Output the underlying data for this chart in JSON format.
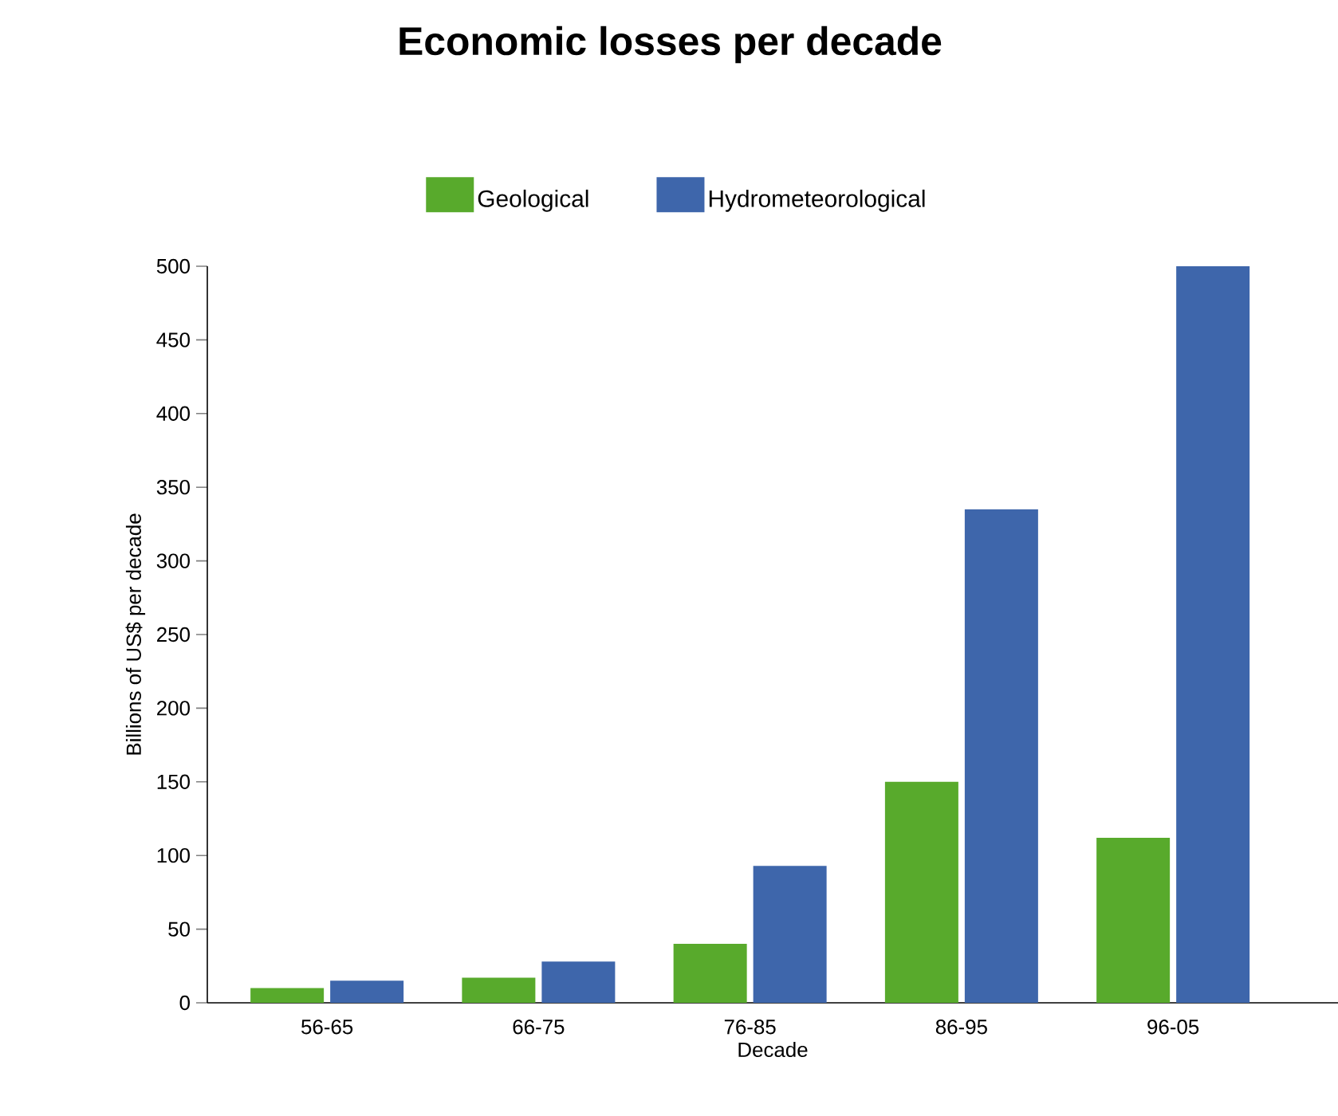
{
  "chart_data": {
    "type": "bar",
    "title": "Economic losses per decade",
    "xlabel": "Decade",
    "ylabel": "Billions of US$ per decade",
    "categories": [
      "56-65",
      "66-75",
      "76-85",
      "86-95",
      "96-05"
    ],
    "series": [
      {
        "name": "Geological",
        "color": "#58aa2c",
        "values": [
          10,
          17,
          40,
          150,
          112
        ]
      },
      {
        "name": "Hydrometeorological",
        "color": "#3e66ab",
        "values": [
          15,
          28,
          93,
          335,
          500
        ]
      }
    ],
    "ylim": [
      0,
      500
    ],
    "yticks": [
      0,
      50,
      100,
      150,
      200,
      250,
      300,
      350,
      400,
      450,
      500
    ],
    "grid": false,
    "legend": "top"
  }
}
